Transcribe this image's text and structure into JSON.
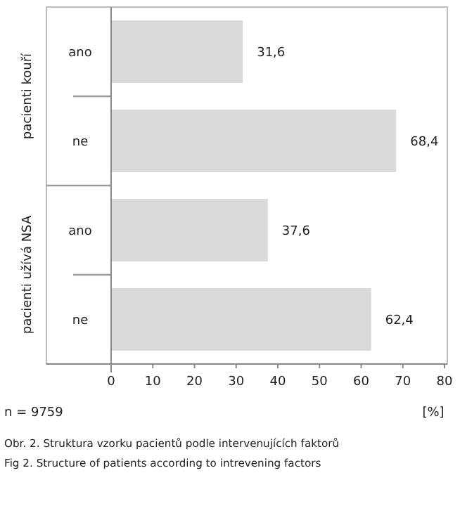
{
  "chart_data": {
    "type": "bar",
    "orientation": "horizontal",
    "categories": [
      "ano",
      "ne",
      "ano",
      "ne"
    ],
    "values": [
      31.6,
      68.4,
      37.6,
      62.4
    ],
    "value_labels": [
      "31,6",
      "68,4",
      "37,6",
      "62,4"
    ],
    "color": "#d9dadb",
    "xlim": [
      0,
      80
    ],
    "xticks": [
      0,
      10,
      20,
      30,
      40,
      50,
      60,
      70,
      80
    ],
    "xlabel": "[%]",
    "grid": false,
    "annotations": [
      "pacienti kouří",
      "pacienti užívá NSA",
      "n = 9759",
      "Obr. 2. Struktura vzorku pacientů podle intervenujících faktorů",
      "Fig 2. Structure of patients according to intrevening factors"
    ]
  }
}
